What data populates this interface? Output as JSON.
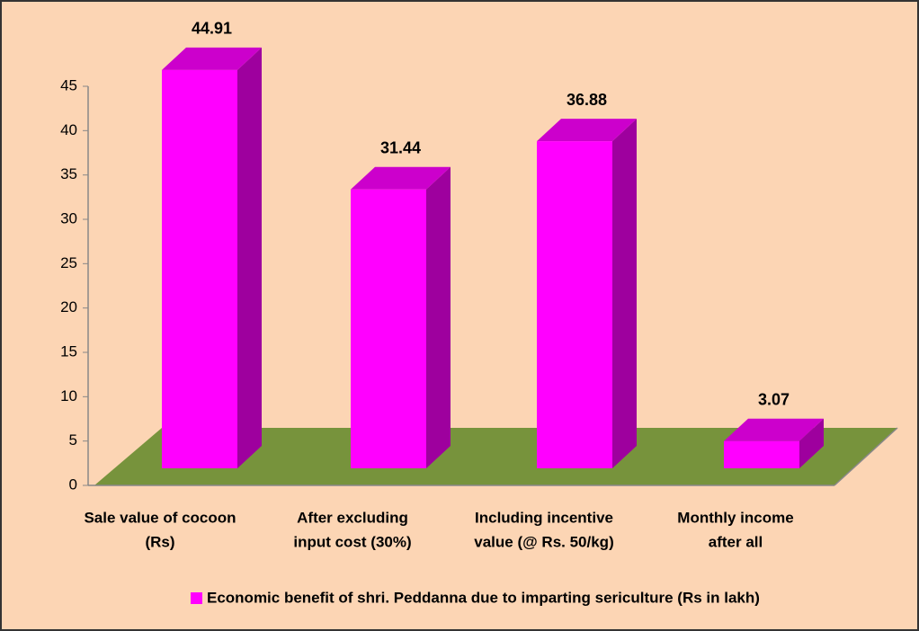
{
  "chart_data": {
    "type": "bar3d",
    "categories": [
      [
        "Sale value of cocoon",
        "(Rs)"
      ],
      [
        "After excluding",
        "input cost (30%)"
      ],
      [
        "Including incentive",
        "value (@ Rs. 50/kg)"
      ],
      [
        "Monthly income",
        "after all"
      ]
    ],
    "series": [
      {
        "name": "Economic benefit of shri. Peddanna due to imparting sericulture (Rs in lakh)",
        "color": "#ff00ff",
        "values": [
          44.91,
          31.44,
          36.88,
          3.07
        ]
      }
    ],
    "ylim": [
      0,
      45
    ],
    "yticks": [
      0,
      5,
      10,
      15,
      20,
      25,
      30,
      35,
      40,
      45
    ],
    "legend": "bottom"
  }
}
